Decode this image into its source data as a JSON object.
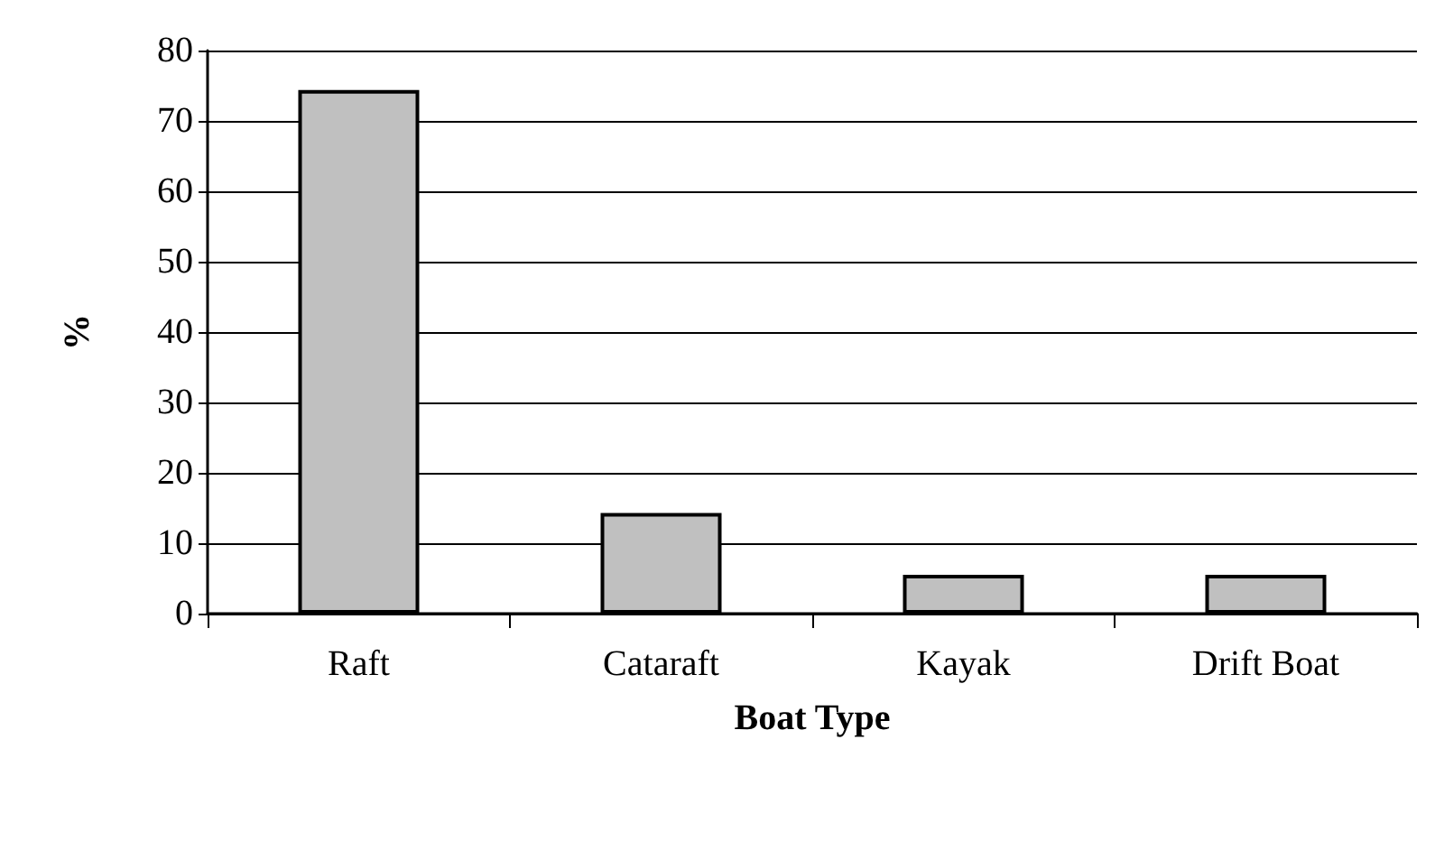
{
  "chart_data": {
    "type": "bar",
    "xlabel": "Boat Type",
    "ylabel": "%",
    "categories": [
      "Raft",
      "Cataraft",
      "Kayak",
      "Drift Boat"
    ],
    "values": [
      74.4,
      14.3,
      5.5,
      5.5
    ],
    "color": "#c0c0c0",
    "ylim": [
      0,
      80
    ],
    "yticks": [
      0,
      10,
      20,
      30,
      40,
      50,
      60,
      70,
      80
    ],
    "grid": "y"
  }
}
